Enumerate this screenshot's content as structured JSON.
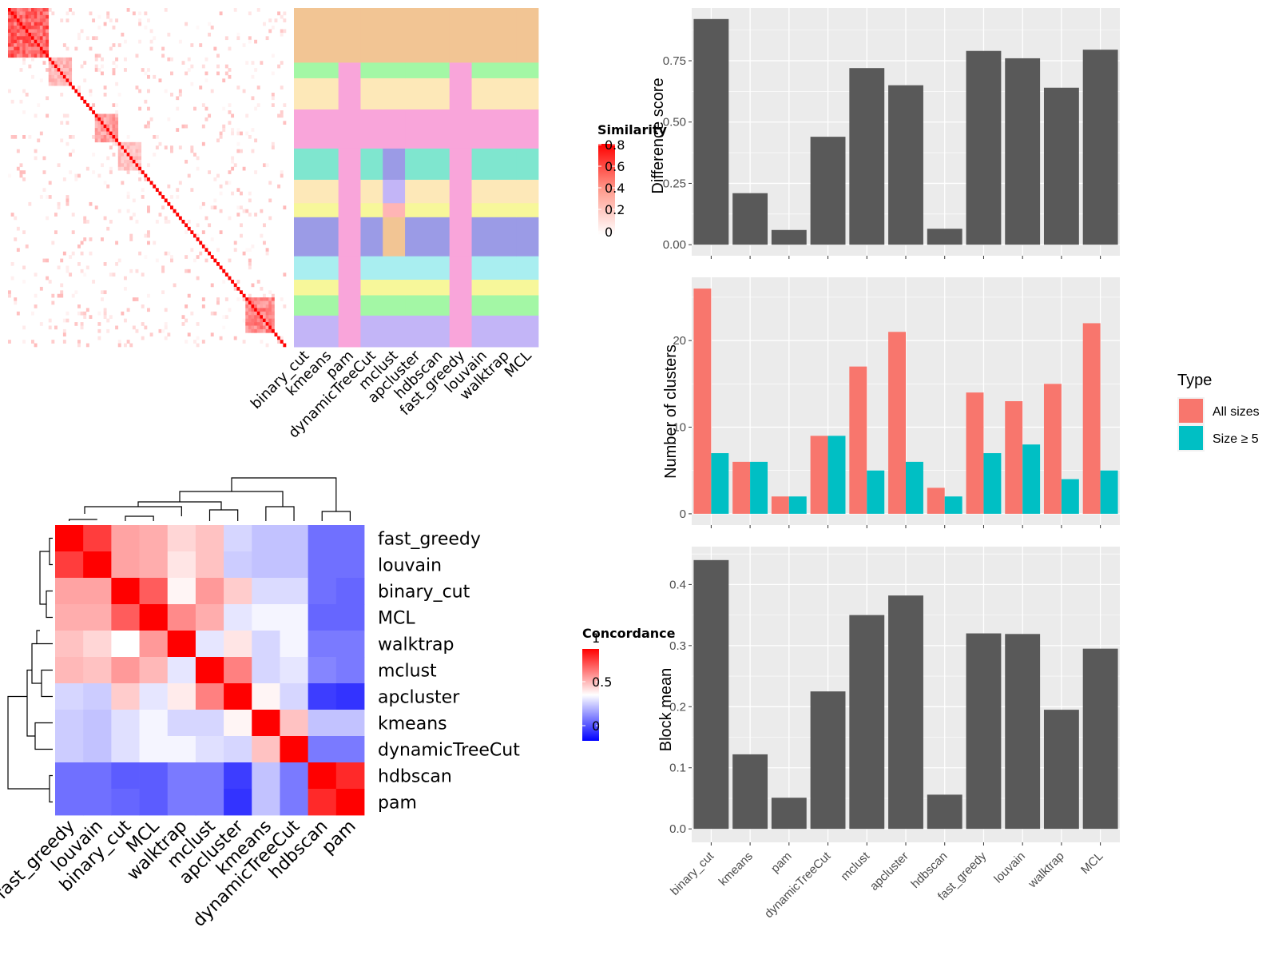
{
  "labels": {
    "similarity_legend_title": "Similarity",
    "concordance_legend_title": "Concordance",
    "diff_ylabel": "Difference score",
    "nclust_ylabel": "Number of clusters",
    "block_ylabel": "Block mean",
    "type_legend_title": "Type",
    "type_all": "All sizes",
    "type_size5": "Size ≥ 5"
  },
  "colors": {
    "panel_bg": "#EBEBEB",
    "bar_fill": "#595959",
    "all_sizes": "#F8766D",
    "size5": "#00BFC4",
    "heat_high": "#FF0000",
    "heat_mid": "#FFFFFF",
    "heat_low": "#0000FF"
  },
  "similarity_legend_ticks": [
    "0.8",
    "0.6",
    "0.4",
    "0.2",
    "0"
  ],
  "concordance_legend_ticks": [
    "1",
    "0.5",
    "0"
  ],
  "chart_data": [
    {
      "type": "heatmap",
      "name": "similarity-matrix",
      "description_cols": [
        "binary_cut",
        "kmeans",
        "pam",
        "dynamicTreeCut",
        "mclust",
        "apcluster",
        "hdbscan",
        "fast_greedy",
        "louvain",
        "walktrap",
        "MCL"
      ],
      "legend_range": [
        0,
        0.8
      ]
    },
    {
      "type": "heatmap",
      "name": "concordance-matrix",
      "methods": [
        "fast_greedy",
        "louvain",
        "binary_cut",
        "MCL",
        "walktrap",
        "mclust",
        "apcluster",
        "kmeans",
        "dynamicTreeCut",
        "hdbscan",
        "pam"
      ],
      "values": [
        [
          1.0,
          0.88,
          0.68,
          0.66,
          0.58,
          0.62,
          0.42,
          0.38,
          0.38,
          0.22,
          0.22
        ],
        [
          0.88,
          1.0,
          0.68,
          0.66,
          0.55,
          0.62,
          0.4,
          0.38,
          0.38,
          0.22,
          0.22
        ],
        [
          0.68,
          0.68,
          1.0,
          0.82,
          0.52,
          0.7,
          0.6,
          0.43,
          0.43,
          0.22,
          0.2
        ],
        [
          0.66,
          0.66,
          0.82,
          1.0,
          0.73,
          0.66,
          0.45,
          0.48,
          0.48,
          0.2,
          0.2
        ],
        [
          0.62,
          0.58,
          0.5,
          0.7,
          1.0,
          0.45,
          0.55,
          0.42,
          0.48,
          0.24,
          0.24
        ],
        [
          0.64,
          0.62,
          0.7,
          0.64,
          0.45,
          1.0,
          0.75,
          0.42,
          0.45,
          0.26,
          0.24
        ],
        [
          0.42,
          0.4,
          0.6,
          0.45,
          0.54,
          0.75,
          1.0,
          0.52,
          0.42,
          0.12,
          0.1
        ],
        [
          0.4,
          0.38,
          0.44,
          0.48,
          0.42,
          0.42,
          0.52,
          1.0,
          0.62,
          0.38,
          0.38
        ],
        [
          0.4,
          0.38,
          0.44,
          0.48,
          0.48,
          0.44,
          0.42,
          0.62,
          1.0,
          0.24,
          0.24
        ],
        [
          0.22,
          0.22,
          0.18,
          0.18,
          0.24,
          0.24,
          0.12,
          0.38,
          0.24,
          1.0,
          0.92
        ],
        [
          0.22,
          0.22,
          0.2,
          0.18,
          0.24,
          0.24,
          0.1,
          0.38,
          0.24,
          0.92,
          1.0
        ]
      ],
      "legend_range": [
        0,
        1
      ]
    },
    {
      "type": "bar",
      "name": "difference-score",
      "categories": [
        "binary_cut",
        "kmeans",
        "pam",
        "dynamicTreeCut",
        "mclust",
        "apcluster",
        "hdbscan",
        "fast_greedy",
        "louvain",
        "walktrap",
        "MCL"
      ],
      "values": [
        0.92,
        0.21,
        0.06,
        0.44,
        0.72,
        0.65,
        0.065,
        0.79,
        0.76,
        0.64,
        0.795
      ],
      "ylabel": "Difference score",
      "yticks": [
        "0.00",
        "0.25",
        "0.50",
        "0.75"
      ],
      "ylim": [
        -0.045,
        0.965
      ]
    },
    {
      "type": "bar",
      "name": "number-of-clusters",
      "categories": [
        "binary_cut",
        "kmeans",
        "pam",
        "dynamicTreeCut",
        "mclust",
        "apcluster",
        "hdbscan",
        "fast_greedy",
        "louvain",
        "walktrap",
        "MCL"
      ],
      "series": [
        {
          "name": "All sizes",
          "values": [
            26,
            6,
            2,
            9,
            17,
            21,
            3,
            14,
            13,
            15,
            22
          ]
        },
        {
          "name": "Size ≥ 5",
          "values": [
            7,
            6,
            2,
            9,
            5,
            6,
            2,
            7,
            8,
            4,
            5
          ]
        }
      ],
      "ylabel": "Number of clusters",
      "yticks": [
        "0",
        "10",
        "20"
      ],
      "ylim": [
        -1.3,
        27.3
      ]
    },
    {
      "type": "bar",
      "name": "block-mean",
      "categories": [
        "binary_cut",
        "kmeans",
        "pam",
        "dynamicTreeCut",
        "mclust",
        "apcluster",
        "hdbscan",
        "fast_greedy",
        "louvain",
        "walktrap",
        "MCL"
      ],
      "values": [
        0.44,
        0.122,
        0.051,
        0.225,
        0.35,
        0.382,
        0.056,
        0.32,
        0.319,
        0.195,
        0.295
      ],
      "ylabel": "Block mean",
      "yticks": [
        "0.0",
        "0.1",
        "0.2",
        "0.3",
        "0.4"
      ],
      "ylim": [
        -0.022,
        0.462
      ]
    }
  ]
}
